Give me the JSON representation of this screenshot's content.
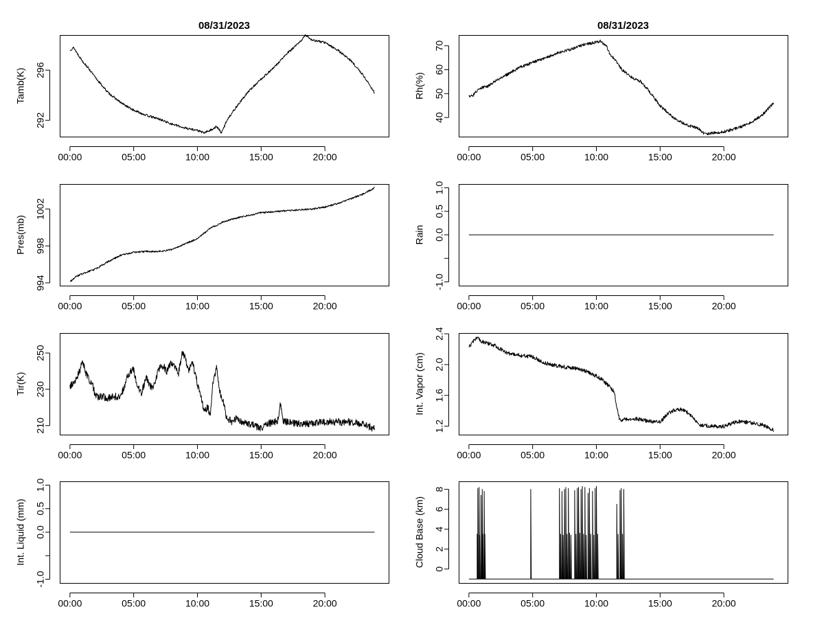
{
  "chart_data": [
    {
      "id": "tamb",
      "type": "line",
      "title": "08/31/2023",
      "xlabel": "",
      "ylabel": "Tamb(K)",
      "xlim": [
        -0.8,
        25.0
      ],
      "ylim": [
        290.7,
        298.8
      ],
      "xticks": [
        0,
        5,
        10,
        15,
        20
      ],
      "xtick_labels": [
        "00:00",
        "05:00",
        "10:00",
        "15:00",
        "20:00"
      ],
      "yticks": [
        292,
        296
      ],
      "ytick_labels": [
        "292",
        "296"
      ],
      "noise": 0.09,
      "series": [
        {
          "name": "Tamb",
          "x": [
            0,
            0.3,
            0.6,
            1,
            1.5,
            2,
            2.5,
            3,
            4,
            5,
            6,
            7,
            8,
            9,
            10,
            10.5,
            11,
            11.5,
            11.9,
            12.3,
            13,
            14,
            15,
            16,
            17,
            18,
            18.5,
            19,
            20,
            21,
            22,
            23,
            23.9
          ],
          "y": [
            297.6,
            297.8,
            297.3,
            296.7,
            296.1,
            295.4,
            294.8,
            294.2,
            293.4,
            292.8,
            292.4,
            292.1,
            291.7,
            291.4,
            291.2,
            291.0,
            291.2,
            291.5,
            291.0,
            292.0,
            293.0,
            294.3,
            295.3,
            296.2,
            297.3,
            298.2,
            298.8,
            298.4,
            298.2,
            297.6,
            296.8,
            295.6,
            294.2
          ]
        }
      ]
    },
    {
      "id": "rh",
      "type": "line",
      "title": "08/31/2023",
      "xlabel": "",
      "ylabel": "Rh(%)",
      "xlim": [
        -0.8,
        25.0
      ],
      "ylim": [
        32,
        74.5
      ],
      "xticks": [
        0,
        5,
        10,
        15,
        20
      ],
      "xtick_labels": [
        "00:00",
        "05:00",
        "10:00",
        "15:00",
        "20:00"
      ],
      "yticks": [
        40,
        50,
        60,
        70
      ],
      "ytick_labels": [
        "40",
        "50",
        "60",
        "70"
      ],
      "noise": 0.6,
      "series": [
        {
          "name": "Rh",
          "x": [
            0,
            0.3,
            0.6,
            1,
            1.5,
            2,
            3,
            4,
            5,
            6,
            7,
            8,
            9,
            9.5,
            10,
            10.3,
            10.8,
            11,
            11.5,
            12,
            13,
            13.5,
            14,
            15,
            16,
            17,
            18,
            18.5,
            19,
            20,
            21,
            22,
            23,
            23.9
          ],
          "y": [
            49,
            49,
            51,
            52.5,
            53,
            55,
            58,
            61,
            63,
            65,
            67,
            68.5,
            70.5,
            71,
            71.5,
            72,
            70,
            67,
            64,
            60,
            56,
            55,
            52,
            45,
            40,
            37,
            35.5,
            33,
            33.5,
            34,
            35.5,
            37.5,
            41,
            46
          ]
        }
      ]
    },
    {
      "id": "pres",
      "type": "line",
      "title": "",
      "xlabel": "",
      "ylabel": "Pres(mb)",
      "xlim": [
        -0.8,
        25.0
      ],
      "ylim": [
        993.7,
        1004.7
      ],
      "xticks": [
        0,
        5,
        10,
        15,
        20
      ],
      "xtick_labels": [
        "00:00",
        "05:00",
        "10:00",
        "15:00",
        "20:00"
      ],
      "yticks": [
        994,
        998,
        1002
      ],
      "ytick_labels": [
        "994",
        "998",
        "1002"
      ],
      "noise": 0.09,
      "series": [
        {
          "name": "Pres",
          "x": [
            0,
            0.5,
            1,
            2,
            3,
            4,
            5,
            6,
            7,
            8,
            9,
            10,
            11,
            12,
            13,
            14,
            15,
            16,
            17,
            18,
            19,
            20,
            21,
            22,
            23,
            23.9
          ],
          "y": [
            994.1,
            994.7,
            995.0,
            995.5,
            996.3,
            997.0,
            997.3,
            997.4,
            997.4,
            997.6,
            998.2,
            998.8,
            999.9,
            1000.6,
            1001.0,
            1001.3,
            1001.6,
            1001.7,
            1001.8,
            1001.9,
            1002.0,
            1002.2,
            1002.6,
            1003.1,
            1003.6,
            1004.3
          ]
        }
      ]
    },
    {
      "id": "rain",
      "type": "line",
      "title": "",
      "xlabel": "",
      "ylabel": "Rain",
      "xlim": [
        -0.8,
        25.0
      ],
      "ylim": [
        -1.08,
        1.08
      ],
      "xticks": [
        0,
        5,
        10,
        15,
        20
      ],
      "xtick_labels": [
        "00:00",
        "05:00",
        "10:00",
        "15:00",
        "20:00"
      ],
      "yticks": [
        -1.0,
        -0.5,
        0.0,
        0.5,
        1.0
      ],
      "ytick_labels": [
        "-1.0",
        "",
        "0.0",
        "0.5",
        "1.0"
      ],
      "noise": 0,
      "series": [
        {
          "name": "Rain",
          "x": [
            0,
            23.9
          ],
          "y": [
            0,
            0
          ]
        }
      ]
    },
    {
      "id": "tir",
      "type": "line",
      "title": "",
      "xlabel": "",
      "ylabel": "Tir(K)",
      "xlim": [
        -0.8,
        25.0
      ],
      "ylim": [
        205,
        261
      ],
      "xticks": [
        0,
        5,
        10,
        15,
        20
      ],
      "xtick_labels": [
        "00:00",
        "05:00",
        "10:00",
        "15:00",
        "20:00"
      ],
      "yticks": [
        210,
        230,
        250
      ],
      "ytick_labels": [
        "210",
        "230",
        "250"
      ],
      "noise": 2.0,
      "series": [
        {
          "name": "Tir",
          "x": [
            0,
            0.5,
            0.8,
            1,
            1.2,
            1.5,
            1.8,
            2,
            2.5,
            3,
            3.5,
            4,
            4.5,
            4.8,
            5,
            5.3,
            5.6,
            6,
            6.5,
            7,
            7.3,
            7.6,
            8,
            8.5,
            8.8,
            9,
            9.3,
            9.6,
            10,
            10.3,
            10.5,
            10.8,
            11,
            11.2,
            11.5,
            11.7,
            12,
            12.3,
            12.7,
            13,
            13.5,
            14,
            14.5,
            15,
            15.5,
            16,
            16.3,
            16.5,
            16.7,
            17,
            18,
            19,
            20,
            21,
            22,
            23,
            23.9
          ],
          "y": [
            231,
            236,
            241,
            246,
            240,
            235,
            232,
            226,
            226,
            225,
            226,
            226,
            237,
            240,
            241,
            232,
            228,
            236,
            230,
            242,
            243,
            240,
            245,
            238,
            250,
            248,
            240,
            245,
            233,
            225,
            218,
            220,
            216,
            232,
            242,
            230,
            224,
            214,
            212,
            214,
            212,
            211,
            210,
            208,
            211,
            212,
            213,
            222,
            213,
            212,
            211,
            211,
            212,
            212,
            212,
            211,
            208
          ]
        }
      ]
    },
    {
      "id": "vapor",
      "type": "line",
      "title": "",
      "xlabel": "",
      "ylabel": "Int. Vapor (cm)",
      "xlim": [
        -0.8,
        25.0
      ],
      "ylim": [
        1.09,
        2.41
      ],
      "xticks": [
        0,
        5,
        10,
        15,
        20
      ],
      "xtick_labels": [
        "00:00",
        "05:00",
        "10:00",
        "15:00",
        "20:00"
      ],
      "yticks": [
        1.2,
        1.6,
        2.0,
        2.4
      ],
      "ytick_labels": [
        "1.2",
        "1.6",
        "2.0",
        "2.4"
      ],
      "noise": 0.025,
      "series": [
        {
          "name": "Int. Vapor",
          "x": [
            0,
            0.3,
            0.6,
            1,
            2,
            3,
            4,
            5,
            6,
            7,
            8,
            9,
            10,
            10.5,
            11,
            11.4,
            11.6,
            11.8,
            12,
            13,
            14,
            15,
            15.5,
            16,
            16.5,
            17,
            17.5,
            18,
            19,
            20,
            21,
            22,
            23,
            23.9
          ],
          "y": [
            2.22,
            2.3,
            2.35,
            2.3,
            2.25,
            2.15,
            2.12,
            2.1,
            2.02,
            1.98,
            1.96,
            1.93,
            1.85,
            1.8,
            1.72,
            1.65,
            1.45,
            1.3,
            1.28,
            1.3,
            1.27,
            1.25,
            1.35,
            1.4,
            1.42,
            1.4,
            1.32,
            1.22,
            1.2,
            1.2,
            1.26,
            1.25,
            1.22,
            1.15
          ]
        }
      ]
    },
    {
      "id": "liquid",
      "type": "line",
      "title": "",
      "xlabel": "",
      "ylabel": "Int. Liquid (mm)",
      "xlim": [
        -0.8,
        25.0
      ],
      "ylim": [
        -1.08,
        1.08
      ],
      "xticks": [
        0,
        5,
        10,
        15,
        20
      ],
      "xtick_labels": [
        "00:00",
        "05:00",
        "10:00",
        "15:00",
        "20:00"
      ],
      "yticks": [
        -1.0,
        -0.5,
        0.0,
        0.5,
        1.0
      ],
      "ytick_labels": [
        "-1.0",
        "",
        "0.0",
        "0.5",
        "1.0"
      ],
      "noise": 0,
      "series": [
        {
          "name": "Int. Liquid",
          "x": [
            0,
            23.9
          ],
          "y": [
            0,
            0
          ]
        }
      ]
    },
    {
      "id": "cloud",
      "type": "line",
      "title": "",
      "xlabel": "",
      "ylabel": "Cloud Base (km)",
      "xlim": [
        -0.8,
        25.0
      ],
      "ylim": [
        -1.4,
        8.8
      ],
      "xticks": [
        0,
        5,
        10,
        15,
        20
      ],
      "xtick_labels": [
        "00:00",
        "05:00",
        "10:00",
        "15:00",
        "20:00"
      ],
      "yticks": [
        0,
        2,
        4,
        6,
        8
      ],
      "ytick_labels": [
        "0",
        "2",
        "4",
        "6",
        "8"
      ],
      "noise": 0,
      "baseline": -1,
      "spikes": [
        [
          0.65,
          3.5
        ],
        [
          0.7,
          8.1
        ],
        [
          0.8,
          8.2
        ],
        [
          0.85,
          3.4
        ],
        [
          0.95,
          7.4
        ],
        [
          1.05,
          8.0
        ],
        [
          1.1,
          3.5
        ],
        [
          1.2,
          7.8
        ],
        [
          1.25,
          3.5
        ],
        [
          4.85,
          8.0
        ],
        [
          7.1,
          8.1
        ],
        [
          7.2,
          3.5
        ],
        [
          7.3,
          7.8
        ],
        [
          7.4,
          3.4
        ],
        [
          7.5,
          8.0
        ],
        [
          7.6,
          8.2
        ],
        [
          7.7,
          3.5
        ],
        [
          7.8,
          8.1
        ],
        [
          7.9,
          3.6
        ],
        [
          8.0,
          3.4
        ],
        [
          8.3,
          7.9
        ],
        [
          8.4,
          3.5
        ],
        [
          8.5,
          8.1
        ],
        [
          8.6,
          8.2
        ],
        [
          8.7,
          3.6
        ],
        [
          8.8,
          8.0
        ],
        [
          8.9,
          8.3
        ],
        [
          9.0,
          3.5
        ],
        [
          9.1,
          8.2
        ],
        [
          9.2,
          3.4
        ],
        [
          9.35,
          7.6
        ],
        [
          9.45,
          8.1
        ],
        [
          9.55,
          3.5
        ],
        [
          9.7,
          7.8
        ],
        [
          9.8,
          3.4
        ],
        [
          9.9,
          8.1
        ],
        [
          10.0,
          8.3
        ],
        [
          10.1,
          3.5
        ],
        [
          11.6,
          6.5
        ],
        [
          11.7,
          3.5
        ],
        [
          11.85,
          7.9
        ],
        [
          11.95,
          8.1
        ],
        [
          12.05,
          3.5
        ],
        [
          12.15,
          8.0
        ]
      ],
      "series": [
        {
          "name": "Cloud Base",
          "x": [
            0,
            23.9
          ],
          "y": [
            -1,
            -1
          ]
        }
      ]
    }
  ]
}
